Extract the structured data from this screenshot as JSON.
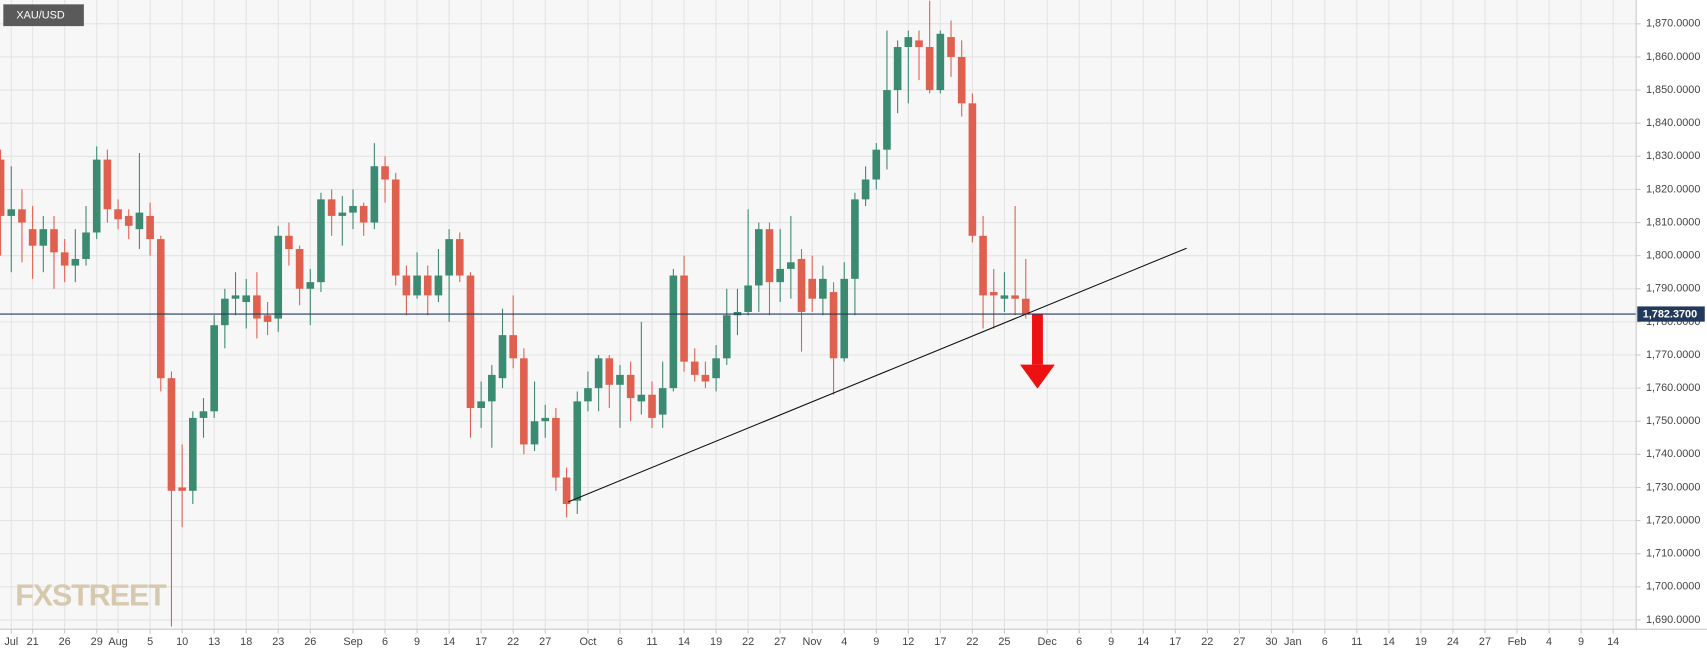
{
  "chart_data": {
    "type": "candlestick",
    "watermark": "FXSTREET",
    "categories": [
      null,
      "Jul",
      null,
      "21",
      null,
      null,
      "26",
      null,
      null,
      "29",
      null,
      "Aug",
      null,
      null,
      "5",
      null,
      null,
      "10",
      null,
      null,
      "13",
      null,
      null,
      "18",
      null,
      null,
      "23",
      null,
      null,
      "26",
      null,
      null,
      null,
      "Sep",
      null,
      null,
      "6",
      null,
      null,
      "9",
      null,
      null,
      "14",
      null,
      null,
      "17",
      null,
      null,
      "22",
      null,
      null,
      "27",
      null,
      null,
      null,
      "Oct",
      null,
      null,
      "6",
      null,
      null,
      "11",
      null,
      null,
      "14",
      null,
      null,
      "19",
      null,
      null,
      "22",
      null,
      null,
      "27",
      null,
      null,
      "Nov",
      null,
      null,
      "4",
      null,
      null,
      "9",
      null,
      null,
      "12",
      null,
      null,
      "17",
      null,
      null,
      "22",
      null,
      null,
      "25",
      null,
      null,
      null,
      "Dec",
      null,
      null,
      "6",
      null,
      null,
      "9",
      null,
      null,
      "14",
      null,
      null,
      "17",
      null,
      null,
      "22",
      null,
      null,
      "27",
      null,
      null,
      "30",
      null,
      "Jan",
      null,
      null,
      "6",
      null,
      null,
      "11",
      null,
      null,
      "14",
      null,
      null,
      "19",
      null,
      null,
      "24",
      null,
      null,
      "27",
      null,
      null,
      "Feb",
      null,
      null,
      "4",
      null,
      null,
      "9",
      null,
      null,
      "14",
      null,
      null
    ],
    "series": [
      {
        "name": "XAU/USD",
        "up_color": "#3b8b72",
        "down_color": "#e0604f",
        "open": [
          1829,
          1812,
          1814,
          1808,
          1803,
          1808,
          1801,
          1797,
          1799,
          1807,
          1829,
          1814,
          1812,
          1808,
          1812,
          1805,
          1763,
          1730,
          1729,
          1751,
          1753,
          1779,
          1787,
          1786,
          1788,
          1782,
          1781,
          1806,
          1802,
          1790,
          1792,
          1817,
          1812,
          1813,
          1815,
          1810,
          1827,
          1823,
          1794,
          1788,
          1794,
          1788,
          1794,
          1805,
          1794,
          1754,
          1756,
          1763,
          1776,
          1769,
          1743,
          1750,
          1751,
          1733,
          1726,
          1756,
          1760,
          1769,
          1761,
          1764,
          1756,
          1758,
          1752,
          1760,
          1794,
          1768,
          1764,
          1763,
          1769,
          1782,
          1783,
          1791,
          1808,
          1792,
          1796,
          1799,
          1793,
          1787,
          1789,
          1769,
          1793,
          1817,
          1823,
          1832,
          1850,
          1863,
          1865,
          1863,
          1850,
          1866,
          1860,
          1846,
          1806,
          1789,
          1787,
          1788,
          1787,
          null,
          null,
          null,
          null,
          null,
          null,
          null,
          null,
          null,
          null,
          null,
          null,
          null,
          null,
          null,
          null,
          null,
          null,
          null,
          null,
          null,
          null,
          null,
          null,
          null,
          null,
          null,
          null,
          null,
          null,
          null,
          null,
          null,
          null,
          null,
          null,
          null,
          null,
          null,
          null,
          null,
          null,
          null,
          null,
          null,
          null,
          null,
          null,
          null,
          null,
          null,
          null,
          null,
          null,
          null,
          null,
          null
        ],
        "high": [
          1832,
          1827,
          1820,
          1815,
          1812,
          1812,
          1805,
          1808,
          1815,
          1833,
          1832,
          1817,
          1814,
          1831,
          1816,
          1806,
          1765,
          1743,
          1753,
          1757,
          1782,
          1790,
          1795,
          1793,
          1795,
          1786,
          1809,
          1810,
          1803,
          1796,
          1819,
          1820,
          1818,
          1820,
          1816,
          1834,
          1830,
          1825,
          1797,
          1801,
          1797,
          1802,
          1808,
          1807,
          1795,
          1762,
          1767,
          1784,
          1788,
          1772,
          1762,
          1755,
          1754,
          1736,
          1759,
          1765,
          1770,
          1770,
          1767,
          1768,
          1780,
          1762,
          1768,
          1796,
          1800,
          1772,
          1768,
          1773,
          1790,
          1790,
          1814,
          1810,
          1810,
          1808,
          1812,
          1802,
          1800,
          1797,
          1792,
          1798,
          1819,
          1827,
          1834,
          1868,
          1865,
          1868,
          1868,
          1877,
          1868,
          1871,
          1865,
          1849,
          1812,
          1796,
          1795,
          1815,
          1799,
          null,
          null,
          null,
          null,
          null,
          null,
          null,
          null,
          null,
          null,
          null,
          null,
          null,
          null,
          null,
          null,
          null,
          null,
          null,
          null,
          null,
          null,
          null,
          null,
          null,
          null,
          null,
          null,
          null,
          null,
          null,
          null,
          null,
          null,
          null,
          null,
          null,
          null,
          null,
          null,
          null,
          null,
          null,
          null,
          null,
          null,
          null,
          null,
          null,
          null,
          null,
          null,
          null,
          null,
          null,
          null,
          null
        ],
        "low": [
          1800,
          1795,
          1798,
          1793,
          1795,
          1790,
          1792,
          1792,
          1797,
          1805,
          1810,
          1808,
          1805,
          1802,
          1800,
          1759,
          1688,
          1718,
          1725,
          1745,
          1751,
          1772,
          1782,
          1778,
          1775,
          1776,
          1777,
          1797,
          1785,
          1779,
          1789,
          1806,
          1803,
          1808,
          1806,
          1808,
          1816,
          1791,
          1782,
          1787,
          1782,
          1786,
          1780,
          1792,
          1745,
          1748,
          1742,
          1760,
          1766,
          1740,
          1741,
          1745,
          1729,
          1721,
          1722,
          1753,
          1753,
          1754,
          1748,
          1750,
          1752,
          1748,
          1748,
          1759,
          1765,
          1762,
          1760,
          1759,
          1767,
          1776,
          1782,
          1783,
          1782,
          1786,
          1787,
          1771,
          1783,
          1782,
          1758,
          1768,
          1782,
          1815,
          1820,
          1826,
          1843,
          1846,
          1853,
          1849,
          1849,
          1854,
          1842,
          1804,
          1778,
          1778,
          1783,
          1782,
          1781,
          null,
          null,
          null,
          null,
          null,
          null,
          null,
          null,
          null,
          null,
          null,
          null,
          null,
          null,
          null,
          null,
          null,
          null,
          null,
          null,
          null,
          null,
          null,
          null,
          null,
          null,
          null,
          null,
          null,
          null,
          null,
          null,
          null,
          null,
          null,
          null,
          null,
          null,
          null,
          null,
          null,
          null,
          null,
          null,
          null,
          null,
          null,
          null,
          null,
          null,
          null,
          null,
          null,
          null,
          null,
          null,
          null
        ],
        "close": [
          1812,
          1814,
          1810,
          1803,
          1808,
          1801,
          1797,
          1799,
          1807,
          1829,
          1814,
          1811,
          1809,
          1813,
          1805,
          1763,
          1729,
          1729,
          1751,
          1753,
          1779,
          1787,
          1788,
          1788,
          1781,
          1780,
          1806,
          1802,
          1790,
          1792,
          1817,
          1812,
          1813,
          1815,
          1810,
          1827,
          1823,
          1794,
          1788,
          1794,
          1788,
          1794,
          1805,
          1794,
          1754,
          1756,
          1764,
          1776,
          1769,
          1743,
          1750,
          1751,
          1733,
          1725,
          1756,
          1760,
          1769,
          1761,
          1764,
          1757,
          1758,
          1751,
          1760,
          1794,
          1768,
          1764,
          1762,
          1769,
          1782,
          1783,
          1791,
          1808,
          1792,
          1796,
          1798,
          1783,
          1787,
          1793,
          1769,
          1793,
          1817,
          1823,
          1832,
          1850,
          1863,
          1866,
          1863,
          1850,
          1867,
          1860,
          1846,
          1806,
          1788,
          1788,
          1788,
          1787,
          1782.37,
          null,
          null,
          null,
          null,
          null,
          null,
          null,
          null,
          null,
          null,
          null,
          null,
          null,
          null,
          null,
          null,
          null,
          null,
          null,
          null,
          null,
          null,
          null,
          null,
          null,
          null,
          null,
          null,
          null,
          null,
          null,
          null,
          null,
          null,
          null,
          null,
          null,
          null,
          null,
          null,
          null,
          null,
          null,
          null,
          null,
          null,
          null,
          null,
          null,
          null,
          null,
          null,
          null,
          null,
          null,
          null,
          null
        ]
      }
    ],
    "current_price": {
      "value": 1782.37,
      "label": "1,782.3700",
      "color": "#23395b"
    },
    "ylim": [
      1687.2,
      1877.2
    ],
    "yticks": [
      {
        "value": 1690,
        "label": "1,690.0000"
      },
      {
        "value": 1700,
        "label": "1,700.0000"
      },
      {
        "value": 1710,
        "label": "1,710.0000"
      },
      {
        "value": 1720,
        "label": "1,720.0000"
      },
      {
        "value": 1730,
        "label": "1,730.0000"
      },
      {
        "value": 1740,
        "label": "1,740.0000"
      },
      {
        "value": 1750,
        "label": "1,750.0000"
      },
      {
        "value": 1760,
        "label": "1,760.0000"
      },
      {
        "value": 1770,
        "label": "1,770.0000"
      },
      {
        "value": 1780,
        "label": "1,780.0000"
      },
      {
        "value": 1790,
        "label": "1,790.0000"
      },
      {
        "value": 1800,
        "label": "1,800.0000"
      },
      {
        "value": 1810,
        "label": "1,810.0000"
      },
      {
        "value": 1820,
        "label": "1,820.0000"
      },
      {
        "value": 1830,
        "label": "1,830.0000"
      },
      {
        "value": 1840,
        "label": "1,840.0000"
      },
      {
        "value": 1850,
        "label": "1,850.0000"
      },
      {
        "value": 1860,
        "label": "1,860.0000"
      },
      {
        "value": 1870,
        "label": "1,870.0000"
      }
    ],
    "grid": true
  }
}
